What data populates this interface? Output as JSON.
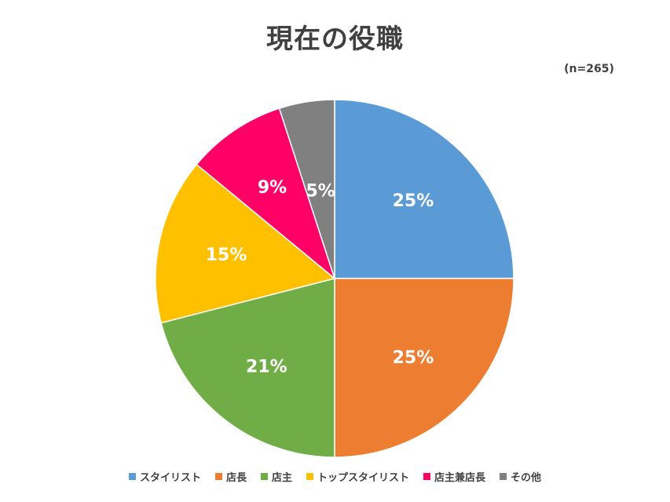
{
  "title": "現在の役職",
  "sample_note": "(n=265)",
  "chart_data": {
    "type": "pie",
    "title": "現在の役職",
    "categories": [
      "スタイリスト",
      "店長",
      "店主",
      "トップスタイリスト",
      "店主兼店長",
      "その他"
    ],
    "values": [
      25,
      25,
      21,
      15,
      9,
      5
    ],
    "labels": [
      "25%",
      "25%",
      "21%",
      "15%",
      "9%",
      "5%"
    ],
    "colors": [
      "#5B9BD5",
      "#ED7D31",
      "#70AD47",
      "#FFC000",
      "#FF0066",
      "#808080"
    ],
    "legend_position": "bottom"
  }
}
